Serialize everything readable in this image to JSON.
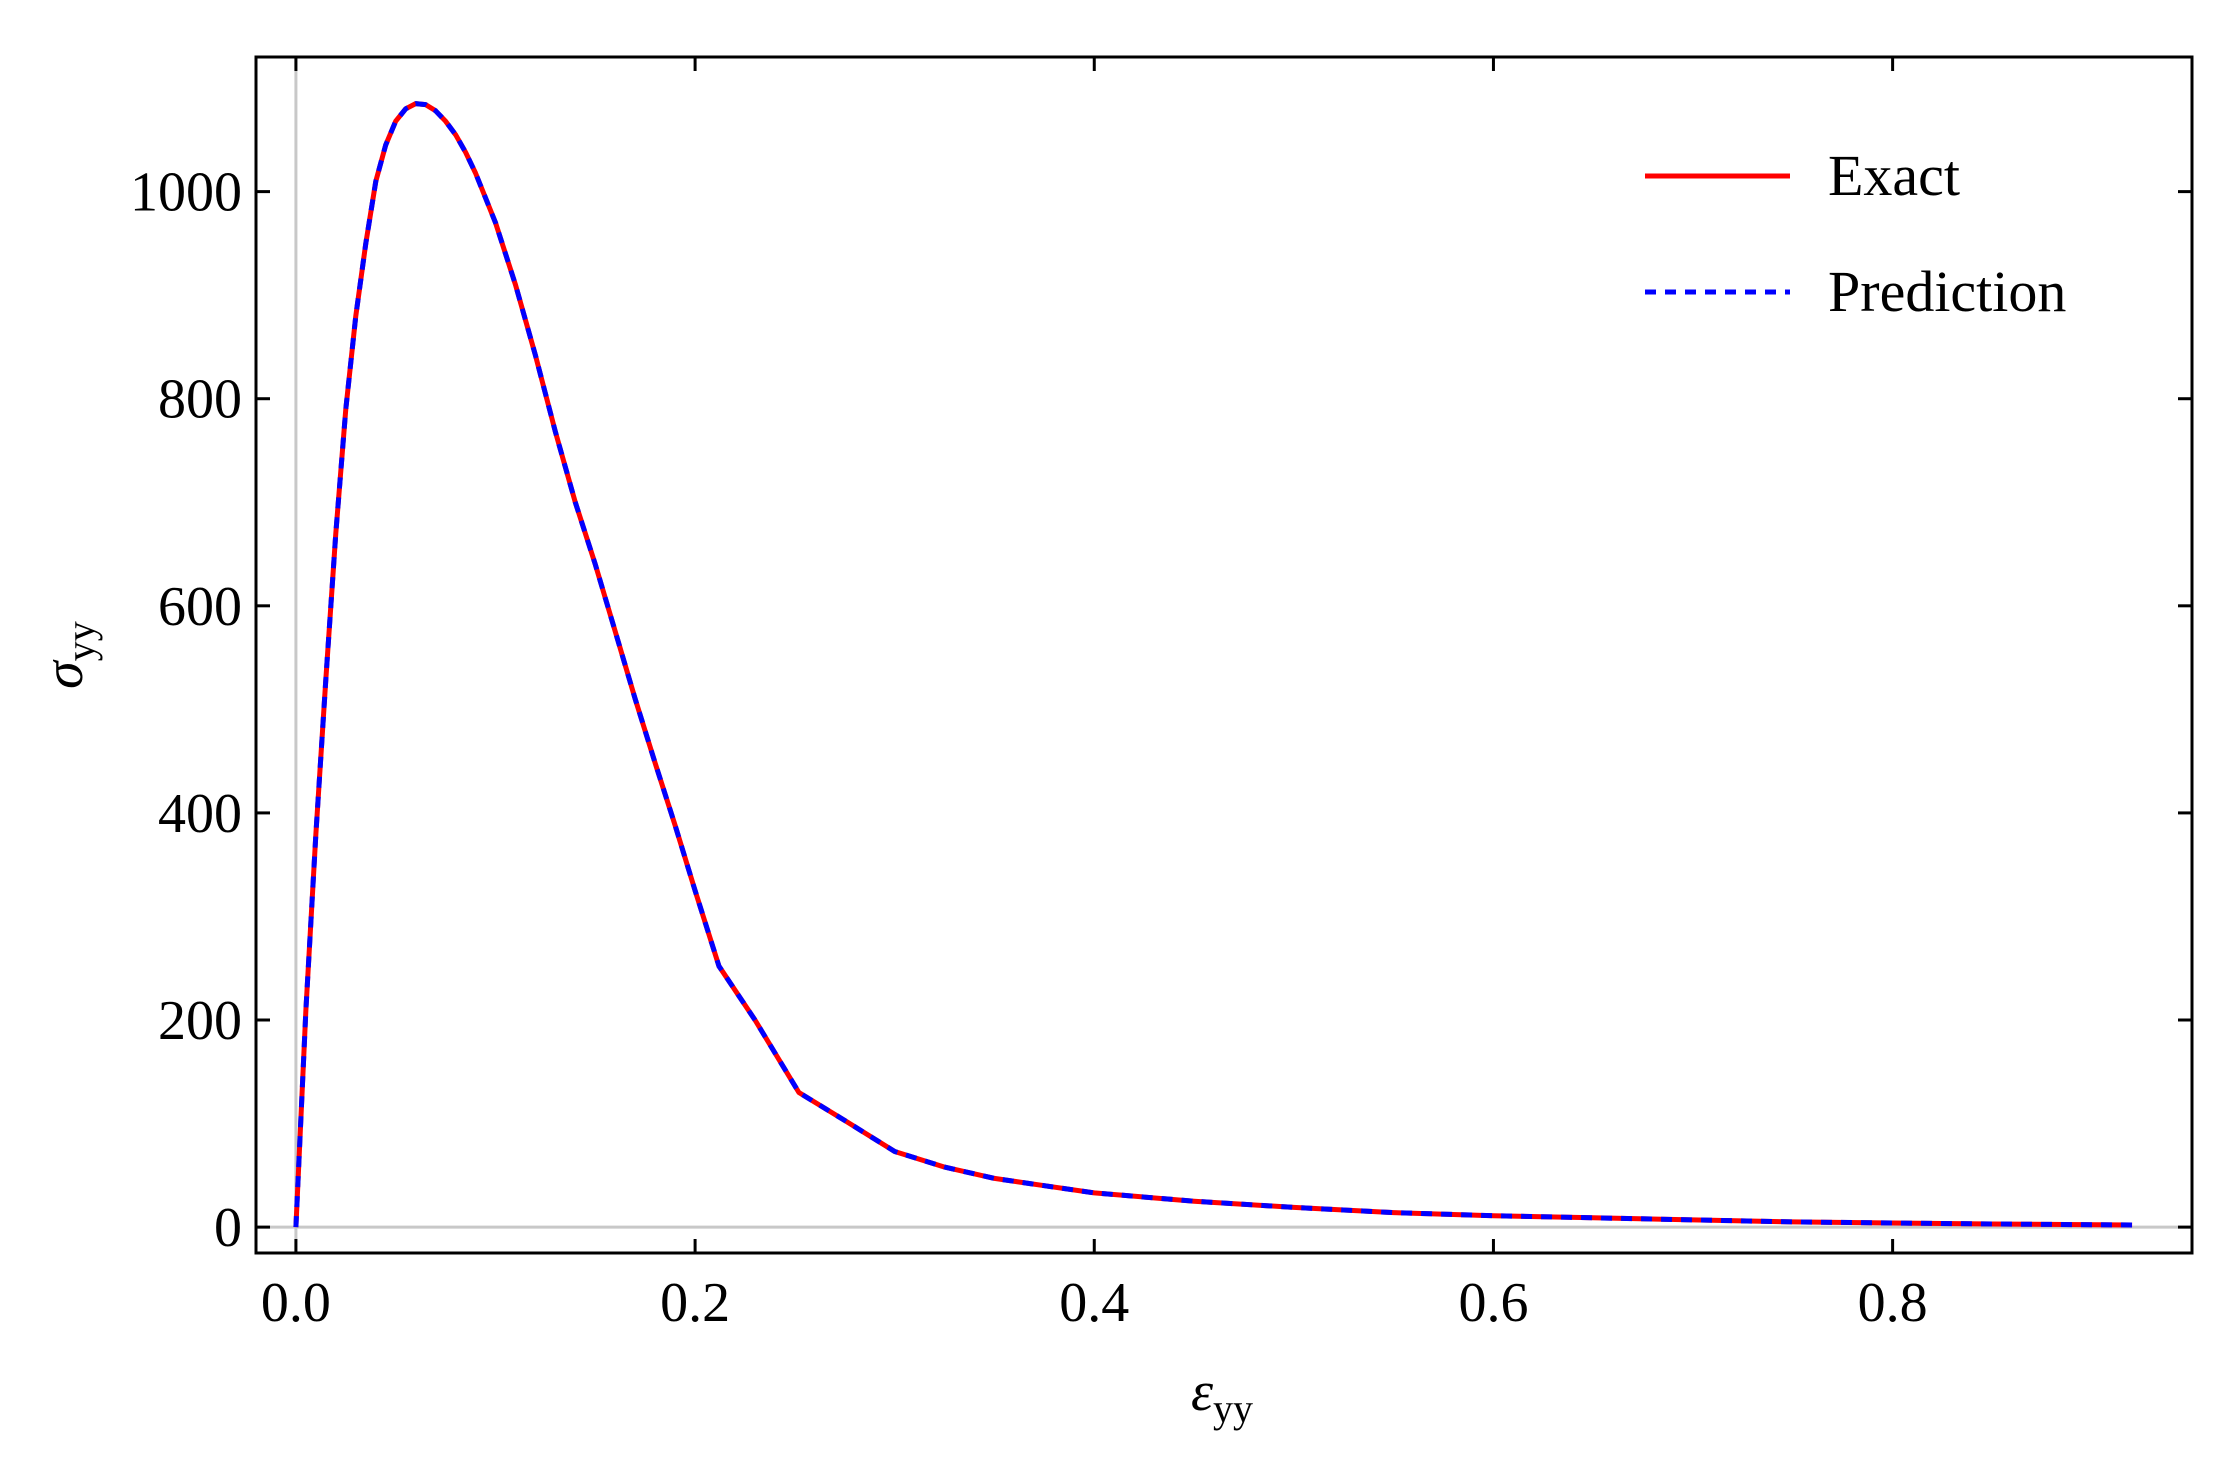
{
  "chart_data": {
    "type": "line",
    "title": "",
    "xlabel": "ε",
    "xlabel_sub": "yy",
    "ylabel": "σ",
    "ylabel_sub": "yy",
    "xlim": [
      -0.02,
      0.95
    ],
    "ylim": [
      -25,
      1130
    ],
    "x_ticks": [
      0.0,
      0.2,
      0.4,
      0.6,
      0.8
    ],
    "x_tick_labels": [
      "0.0",
      "0.2",
      "0.4",
      "0.6",
      "0.8"
    ],
    "y_ticks": [
      0,
      200,
      400,
      600,
      800,
      1000
    ],
    "y_tick_labels": [
      "0",
      "200",
      "400",
      "600",
      "800",
      "1000"
    ],
    "grid": false,
    "reference_lines": {
      "x": 0,
      "y": 0,
      "color": "#c8c8c8"
    },
    "legend": {
      "position": "top-right",
      "entries": [
        {
          "label": "Exact",
          "color": "#ff0000",
          "style": "solid"
        },
        {
          "label": "Prediction",
          "color": "#0000ff",
          "style": "dashed"
        }
      ]
    },
    "x": [
      0.0,
      0.005,
      0.01,
      0.015,
      0.02,
      0.025,
      0.03,
      0.035,
      0.04,
      0.045,
      0.05,
      0.055,
      0.06,
      0.065,
      0.07,
      0.075,
      0.08,
      0.085,
      0.09,
      0.1,
      0.11,
      0.12,
      0.13,
      0.14,
      0.15,
      0.16,
      0.17,
      0.18,
      0.19,
      0.2,
      0.212,
      0.23,
      0.252,
      0.275,
      0.3,
      0.325,
      0.35,
      0.375,
      0.4,
      0.45,
      0.5,
      0.55,
      0.6,
      0.65,
      0.7,
      0.75,
      0.8,
      0.85,
      0.92
    ],
    "series": [
      {
        "name": "Exact",
        "color": "#ff0000",
        "style": "solid",
        "values": [
          0,
          210,
          380,
          530,
          670,
          790,
          880,
          950,
          1010,
          1045,
          1068,
          1080,
          1085,
          1084,
          1078,
          1068,
          1055,
          1038,
          1018,
          970,
          910,
          842,
          768,
          700,
          640,
          575,
          510,
          448,
          388,
          325,
          252,
          200,
          130,
          103,
          73,
          58,
          47,
          40,
          33,
          25,
          19,
          14,
          11,
          9,
          7,
          5,
          4,
          3,
          2
        ]
      },
      {
        "name": "Prediction",
        "color": "#0000ff",
        "style": "dashed",
        "values": [
          0,
          210,
          380,
          530,
          670,
          790,
          880,
          950,
          1010,
          1045,
          1068,
          1080,
          1085,
          1084,
          1078,
          1068,
          1055,
          1038,
          1018,
          970,
          910,
          842,
          768,
          700,
          640,
          575,
          510,
          448,
          388,
          325,
          252,
          200,
          130,
          103,
          73,
          58,
          47,
          40,
          33,
          25,
          19,
          14,
          11,
          9,
          7,
          5,
          4,
          3,
          2
        ]
      }
    ]
  }
}
